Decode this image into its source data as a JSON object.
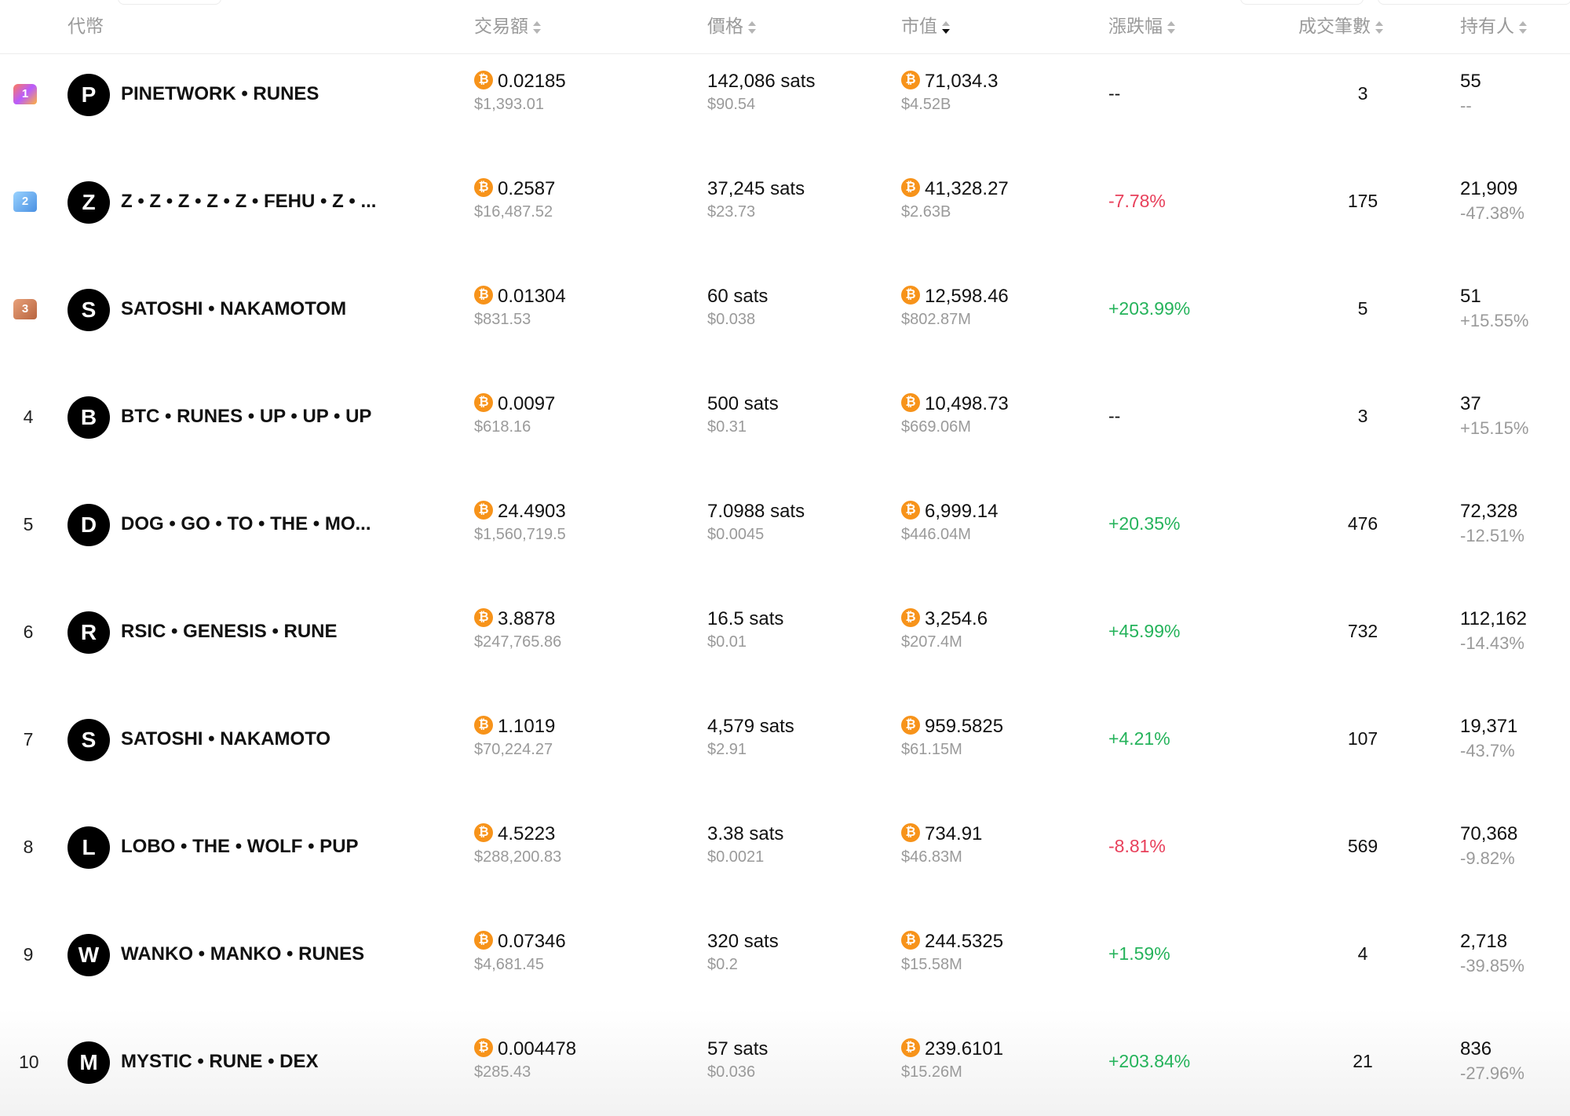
{
  "header": {
    "token": "代幣",
    "volume": "交易額",
    "price": "價格",
    "market_cap": "市值",
    "change": "漲跌幅",
    "trades": "成交筆數",
    "holders": "持有人"
  },
  "rows": [
    {
      "rank": "1",
      "medal": "gold",
      "initial": "P",
      "name": "PINETWORK • RUNES",
      "volume_btc": "0.02185",
      "volume_usd": "$1,393.01",
      "price_sats": "142,086 sats",
      "price_usd": "$90.54",
      "mcap_btc": "71,034.3",
      "mcap_usd": "$4.52B",
      "change": "--",
      "change_dir": "neu",
      "trades": "3",
      "holders": "55",
      "holders_change": "--",
      "holders_dir": "neu"
    },
    {
      "rank": "2",
      "medal": "silver",
      "initial": "Z",
      "name": "Z • Z • Z • Z • Z • FEHU • Z • ...",
      "volume_btc": "0.2587",
      "volume_usd": "$16,487.52",
      "price_sats": "37,245 sats",
      "price_usd": "$23.73",
      "mcap_btc": "41,328.27",
      "mcap_usd": "$2.63B",
      "change": "-7.78%",
      "change_dir": "down",
      "trades": "175",
      "holders": "21,909",
      "holders_change": "-47.38%",
      "holders_dir": "down"
    },
    {
      "rank": "3",
      "medal": "bronze",
      "initial": "S",
      "name": "SATOSHI • NAKAMOTOM",
      "volume_btc": "0.01304",
      "volume_usd": "$831.53",
      "price_sats": "60 sats",
      "price_usd": "$0.038",
      "mcap_btc": "12,598.46",
      "mcap_usd": "$802.87M",
      "change": "+203.99%",
      "change_dir": "up",
      "trades": "5",
      "holders": "51",
      "holders_change": "+15.55%",
      "holders_dir": "up"
    },
    {
      "rank": "4",
      "medal": "",
      "initial": "B",
      "name": "BTC • RUNES • UP • UP • UP",
      "volume_btc": "0.0097",
      "volume_usd": "$618.16",
      "price_sats": "500 sats",
      "price_usd": "$0.31",
      "mcap_btc": "10,498.73",
      "mcap_usd": "$669.06M",
      "change": "--",
      "change_dir": "neu",
      "trades": "3",
      "holders": "37",
      "holders_change": "+15.15%",
      "holders_dir": "up"
    },
    {
      "rank": "5",
      "medal": "",
      "initial": "D",
      "name": "DOG • GO • TO • THE • MO...",
      "volume_btc": "24.4903",
      "volume_usd": "$1,560,719.5",
      "price_sats": "7.0988 sats",
      "price_usd": "$0.0045",
      "mcap_btc": "6,999.14",
      "mcap_usd": "$446.04M",
      "change": "+20.35%",
      "change_dir": "up",
      "trades": "476",
      "holders": "72,328",
      "holders_change": "-12.51%",
      "holders_dir": "down"
    },
    {
      "rank": "6",
      "medal": "",
      "initial": "R",
      "name": "RSIC • GENESIS • RUNE",
      "volume_btc": "3.8878",
      "volume_usd": "$247,765.86",
      "price_sats": "16.5 sats",
      "price_usd": "$0.01",
      "mcap_btc": "3,254.6",
      "mcap_usd": "$207.4M",
      "change": "+45.99%",
      "change_dir": "up",
      "trades": "732",
      "holders": "112,162",
      "holders_change": "-14.43%",
      "holders_dir": "down"
    },
    {
      "rank": "7",
      "medal": "",
      "initial": "S",
      "name": "SATOSHI • NAKAMOTO",
      "volume_btc": "1.1019",
      "volume_usd": "$70,224.27",
      "price_sats": "4,579 sats",
      "price_usd": "$2.91",
      "mcap_btc": "959.5825",
      "mcap_usd": "$61.15M",
      "change": "+4.21%",
      "change_dir": "up",
      "trades": "107",
      "holders": "19,371",
      "holders_change": "-43.7%",
      "holders_dir": "down"
    },
    {
      "rank": "8",
      "medal": "",
      "initial": "L",
      "name": "LOBO • THE • WOLF • PUP",
      "volume_btc": "4.5223",
      "volume_usd": "$288,200.83",
      "price_sats": "3.38 sats",
      "price_usd": "$0.0021",
      "mcap_btc": "734.91",
      "mcap_usd": "$46.83M",
      "change": "-8.81%",
      "change_dir": "down",
      "trades": "569",
      "holders": "70,368",
      "holders_change": "-9.82%",
      "holders_dir": "down"
    },
    {
      "rank": "9",
      "medal": "",
      "initial": "W",
      "name": "WANKO • MANKO • RUNES",
      "volume_btc": "0.07346",
      "volume_usd": "$4,681.45",
      "price_sats": "320 sats",
      "price_usd": "$0.2",
      "mcap_btc": "244.5325",
      "mcap_usd": "$15.58M",
      "change": "+1.59%",
      "change_dir": "up",
      "trades": "4",
      "holders": "2,718",
      "holders_change": "-39.85%",
      "holders_dir": "down"
    },
    {
      "rank": "10",
      "medal": "",
      "initial": "M",
      "name": "MYSTIC • RUNE • DEX",
      "volume_btc": "0.004478",
      "volume_usd": "$285.43",
      "price_sats": "57 sats",
      "price_usd": "$0.036",
      "mcap_btc": "239.6101",
      "mcap_usd": "$15.26M",
      "change": "+203.84%",
      "change_dir": "up",
      "trades": "21",
      "holders": "836",
      "holders_change": "-27.96%",
      "holders_dir": "down"
    }
  ],
  "icons": {
    "currency": "bitcoin-icon",
    "sort": "sort-arrows-icon",
    "rank_badge": "crown-rank-icon"
  },
  "colors": {
    "up": "#25b35b",
    "down": "#e8405b",
    "btc": "#f7931a",
    "muted": "#9a9a9a"
  }
}
